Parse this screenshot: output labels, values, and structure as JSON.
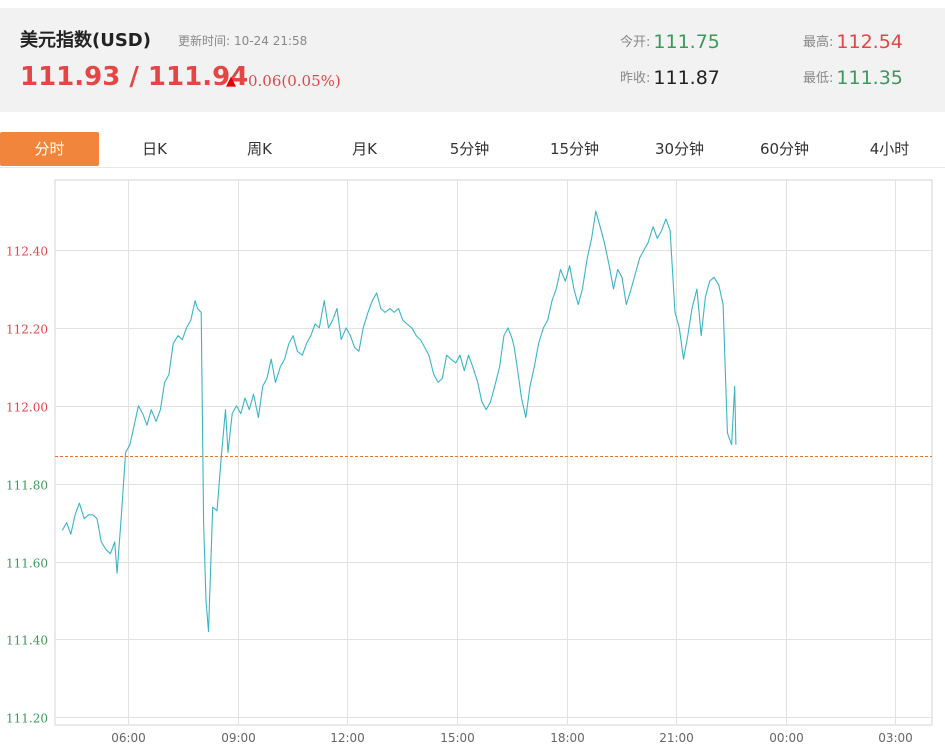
{
  "header": {
    "title": "美元指数(USD)",
    "update_label": "更新时间:",
    "update_time": "10-24 21:58",
    "price": "111.93 / 111.94",
    "change": "0.06(0.05%)",
    "open_label": "今开:",
    "open_value": "111.75",
    "high_label": "最高:",
    "high_value": "112.54",
    "prev_close_label": "昨收:",
    "prev_close_value": "111.87",
    "low_label": "最低:",
    "low_value": "111.35"
  },
  "tabs": [
    {
      "label": "分时",
      "active": true
    },
    {
      "label": "日K",
      "active": false
    },
    {
      "label": "周K",
      "active": false
    },
    {
      "label": "月K",
      "active": false
    },
    {
      "label": "5分钟",
      "active": false
    },
    {
      "label": "15分钟",
      "active": false
    },
    {
      "label": "30分钟",
      "active": false
    },
    {
      "label": "60分钟",
      "active": false
    },
    {
      "label": "4小时",
      "active": false
    }
  ],
  "colors": {
    "up": "#e64545",
    "down": "#3a9a5a",
    "line": "#3ab5c8",
    "reference": "#e8732a",
    "active_tab": "#f1853b"
  },
  "chart_data": {
    "type": "line",
    "y_ticks": [
      "112.40",
      "112.20",
      "112.00",
      "111.80",
      "111.60",
      "111.40",
      "111.20"
    ],
    "x_ticks": [
      "06:00",
      "09:00",
      "12:00",
      "15:00",
      "18:00",
      "21:00",
      "00:00",
      "03:00"
    ],
    "ylim": [
      111.18,
      112.58
    ],
    "reference_line": 111.87,
    "grid": true,
    "series": [
      {
        "points": [
          [
            "04:12",
            111.68
          ],
          [
            "04:19",
            111.7
          ],
          [
            "04:26",
            111.67
          ],
          [
            "04:33",
            111.72
          ],
          [
            "04:40",
            111.75
          ],
          [
            "04:48",
            111.71
          ],
          [
            "04:55",
            111.72
          ],
          [
            "05:02",
            111.72
          ],
          [
            "05:09",
            111.71
          ],
          [
            "05:16",
            111.65
          ],
          [
            "05:24",
            111.63
          ],
          [
            "05:31",
            111.62
          ],
          [
            "05:38",
            111.65
          ],
          [
            "05:42",
            111.57
          ],
          [
            "05:49",
            111.72
          ],
          [
            "05:56",
            111.88
          ],
          [
            "06:03",
            111.9
          ],
          [
            "06:10",
            111.95
          ],
          [
            "06:17",
            112.0
          ],
          [
            "06:24",
            111.98
          ],
          [
            "06:31",
            111.95
          ],
          [
            "06:38",
            111.99
          ],
          [
            "06:46",
            111.96
          ],
          [
            "06:53",
            111.99
          ],
          [
            "07:00",
            112.06
          ],
          [
            "07:07",
            112.08
          ],
          [
            "07:14",
            112.16
          ],
          [
            "07:22",
            112.18
          ],
          [
            "07:29",
            112.17
          ],
          [
            "07:36",
            112.2
          ],
          [
            "07:43",
            112.22
          ],
          [
            "07:50",
            112.27
          ],
          [
            "07:54",
            112.25
          ],
          [
            "08:00",
            112.24
          ],
          [
            "08:04",
            111.7
          ],
          [
            "08:08",
            111.5
          ],
          [
            "08:12",
            111.42
          ],
          [
            "08:19",
            111.74
          ],
          [
            "08:26",
            111.73
          ],
          [
            "08:33",
            111.87
          ],
          [
            "08:40",
            111.99
          ],
          [
            "08:44",
            111.88
          ],
          [
            "08:51",
            111.98
          ],
          [
            "08:58",
            112.0
          ],
          [
            "09:05",
            111.98
          ],
          [
            "09:12",
            112.02
          ],
          [
            "09:19",
            111.99
          ],
          [
            "09:26",
            112.03
          ],
          [
            "09:34",
            111.97
          ],
          [
            "09:41",
            112.05
          ],
          [
            "09:48",
            112.07
          ],
          [
            "09:55",
            112.12
          ],
          [
            "10:02",
            112.06
          ],
          [
            "10:10",
            112.1
          ],
          [
            "10:17",
            112.12
          ],
          [
            "10:24",
            112.16
          ],
          [
            "10:31",
            112.18
          ],
          [
            "10:38",
            112.14
          ],
          [
            "10:46",
            112.13
          ],
          [
            "10:53",
            112.16
          ],
          [
            "11:00",
            112.18
          ],
          [
            "11:07",
            112.21
          ],
          [
            "11:14",
            112.2
          ],
          [
            "11:22",
            112.27
          ],
          [
            "11:29",
            112.2
          ],
          [
            "11:36",
            112.22
          ],
          [
            "11:43",
            112.25
          ],
          [
            "11:50",
            112.17
          ],
          [
            "11:58",
            112.2
          ],
          [
            "12:05",
            112.18
          ],
          [
            "12:12",
            112.15
          ],
          [
            "12:19",
            112.14
          ],
          [
            "12:26",
            112.2
          ],
          [
            "12:34",
            112.24
          ],
          [
            "12:41",
            112.27
          ],
          [
            "12:48",
            112.29
          ],
          [
            "12:55",
            112.25
          ],
          [
            "13:02",
            112.24
          ],
          [
            "13:10",
            112.25
          ],
          [
            "13:17",
            112.24
          ],
          [
            "13:24",
            112.25
          ],
          [
            "13:31",
            112.22
          ],
          [
            "13:38",
            112.21
          ],
          [
            "13:46",
            112.2
          ],
          [
            "13:53",
            112.18
          ],
          [
            "14:00",
            112.17
          ],
          [
            "14:07",
            112.15
          ],
          [
            "14:14",
            112.13
          ],
          [
            "14:22",
            112.08
          ],
          [
            "14:29",
            112.06
          ],
          [
            "14:36",
            112.07
          ],
          [
            "14:43",
            112.13
          ],
          [
            "14:50",
            112.12
          ],
          [
            "14:58",
            112.11
          ],
          [
            "15:05",
            112.13
          ],
          [
            "15:12",
            112.09
          ],
          [
            "15:19",
            112.13
          ],
          [
            "15:26",
            112.1
          ],
          [
            "15:34",
            112.06
          ],
          [
            "15:41",
            112.01
          ],
          [
            "15:48",
            111.99
          ],
          [
            "15:55",
            112.01
          ],
          [
            "16:02",
            112.05
          ],
          [
            "16:10",
            112.1
          ],
          [
            "16:17",
            112.18
          ],
          [
            "16:24",
            112.2
          ],
          [
            "16:31",
            112.17
          ],
          [
            "16:34",
            112.15
          ],
          [
            "16:38",
            112.11
          ],
          [
            "16:46",
            112.02
          ],
          [
            "16:53",
            111.97
          ],
          [
            "17:00",
            112.05
          ],
          [
            "17:07",
            112.1
          ],
          [
            "17:14",
            112.16
          ],
          [
            "17:22",
            112.2
          ],
          [
            "17:29",
            112.22
          ],
          [
            "17:36",
            112.27
          ],
          [
            "17:43",
            112.3
          ],
          [
            "17:50",
            112.35
          ],
          [
            "17:58",
            112.32
          ],
          [
            "18:05",
            112.36
          ],
          [
            "18:12",
            112.3
          ],
          [
            "18:19",
            112.26
          ],
          [
            "18:26",
            112.3
          ],
          [
            "18:34",
            112.38
          ],
          [
            "18:41",
            112.43
          ],
          [
            "18:48",
            112.5
          ],
          [
            "18:55",
            112.46
          ],
          [
            "19:02",
            112.42
          ],
          [
            "19:10",
            112.36
          ],
          [
            "19:17",
            112.3
          ],
          [
            "19:24",
            112.35
          ],
          [
            "19:31",
            112.33
          ],
          [
            "19:38",
            112.26
          ],
          [
            "19:46",
            112.3
          ],
          [
            "19:53",
            112.34
          ],
          [
            "20:00",
            112.38
          ],
          [
            "20:07",
            112.4
          ],
          [
            "20:14",
            112.42
          ],
          [
            "20:22",
            112.46
          ],
          [
            "20:29",
            112.43
          ],
          [
            "20:36",
            112.45
          ],
          [
            "20:43",
            112.48
          ],
          [
            "20:50",
            112.45
          ],
          [
            "20:58",
            112.24
          ],
          [
            "21:05",
            112.2
          ],
          [
            "21:12",
            112.12
          ],
          [
            "21:19",
            112.18
          ],
          [
            "21:26",
            112.25
          ],
          [
            "21:34",
            112.3
          ],
          [
            "21:41",
            112.18
          ],
          [
            "21:48",
            112.28
          ],
          [
            "21:55",
            112.32
          ],
          [
            "22:02",
            112.33
          ],
          [
            "22:10",
            112.31
          ],
          [
            "22:17",
            112.26
          ],
          [
            "22:24",
            111.93
          ],
          [
            "22:31",
            111.9
          ],
          [
            "22:36",
            112.05
          ],
          [
            "22:38",
            111.9
          ]
        ]
      }
    ]
  }
}
